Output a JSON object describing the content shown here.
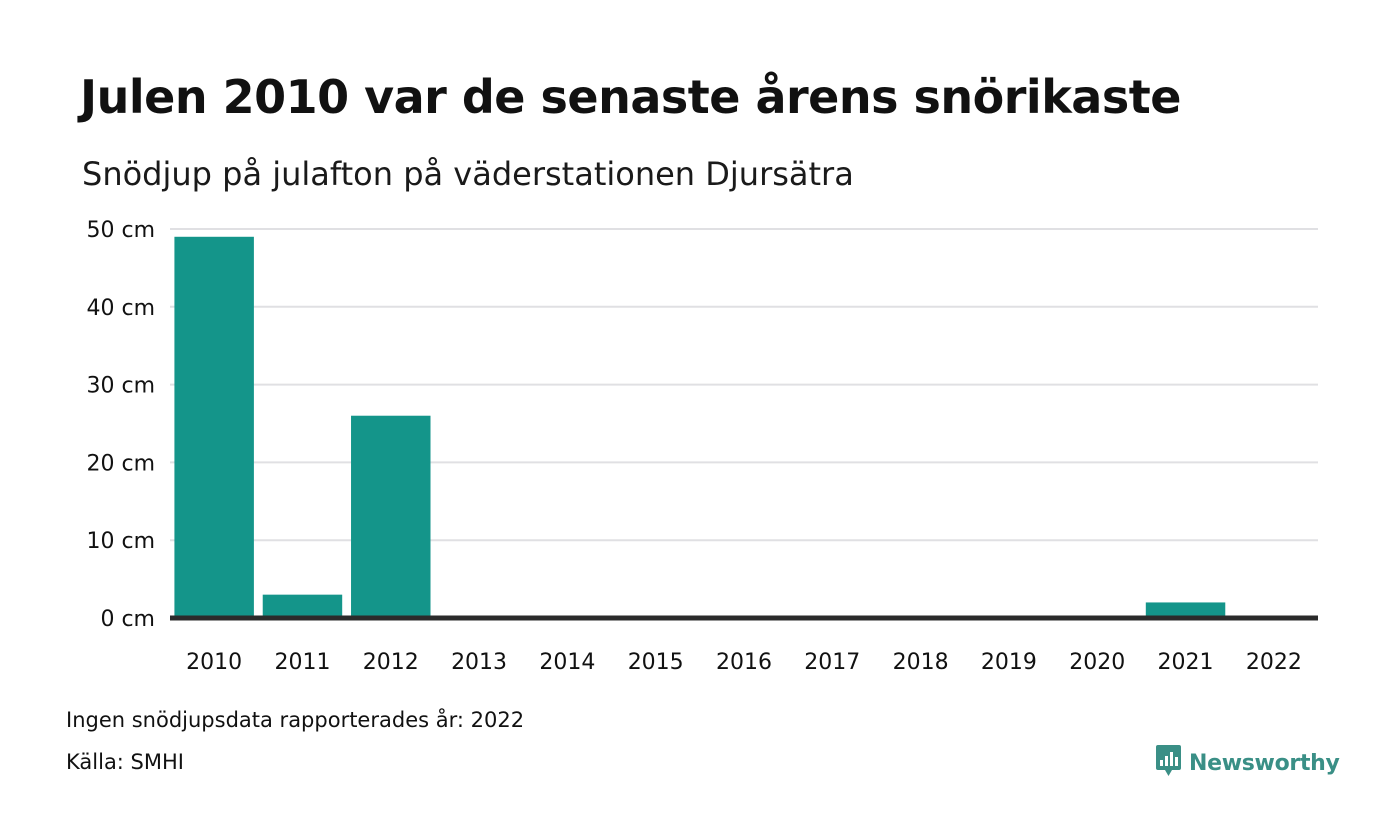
{
  "title": "Julen 2010 var de senaste årens snörikaste",
  "subtitle": "Snödjup på julafton på väderstationen Djursätra",
  "note": "Ingen snödjupsdata rapporterades år: 2022",
  "source": "Källa: SMHI",
  "brand": {
    "name": "Newsworthy",
    "icon": "newsworthy-logo-icon",
    "color": "#3a8f86"
  },
  "colors": {
    "bar": "#14958a",
    "grid": "#e0e0e3",
    "baseline": "#2b2b2b"
  },
  "chart_data": {
    "type": "bar",
    "title": "Julen 2010 var de senaste årens snörikaste",
    "subtitle": "Snödjup på julafton på väderstationen Djursätra",
    "categories": [
      "2010",
      "2011",
      "2012",
      "2013",
      "2014",
      "2015",
      "2016",
      "2017",
      "2018",
      "2019",
      "2020",
      "2021",
      "2022"
    ],
    "values": [
      49,
      3,
      26,
      0,
      0,
      0,
      0,
      0,
      0,
      0,
      0,
      2,
      null
    ],
    "unit": "cm",
    "ylim": [
      0,
      50
    ],
    "yticks": [
      0,
      10,
      20,
      30,
      40,
      50
    ],
    "ytick_labels": [
      "0 cm",
      "10 cm",
      "20 cm",
      "30 cm",
      "40 cm",
      "50 cm"
    ],
    "xlabel": "",
    "ylabel": "",
    "grid": true,
    "legend": "none"
  }
}
